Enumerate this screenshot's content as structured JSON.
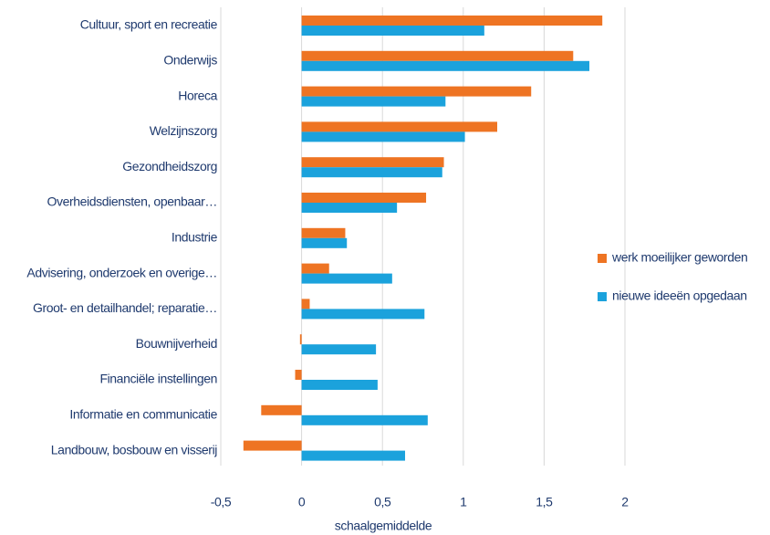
{
  "chart_data": {
    "type": "barh",
    "xlabel": "schaalgemiddelde",
    "categories": [
      "Cultuur, sport en recreatie",
      "Onderwijs",
      "Horeca",
      "Welzijnszorg",
      "Gezondheidszorg",
      "Overheidsdiensten, openbaar…",
      "Industrie",
      "Advisering, onderzoek en overige…",
      "Groot- en detailhandel; reparatie…",
      "Bouwnijverheid",
      "Financiële instellingen",
      "Informatie en communicatie",
      "Landbouw, bosbouw en visserij"
    ],
    "series": [
      {
        "name": "werk moeilijker geworden",
        "color": "#ee7423",
        "values": [
          1.86,
          1.68,
          1.42,
          1.21,
          0.88,
          0.77,
          0.27,
          0.17,
          0.05,
          -0.01,
          -0.04,
          -0.25,
          -0.36
        ]
      },
      {
        "name": "nieuwe ideeën opgedaan",
        "color": "#1ba2dc",
        "values": [
          1.13,
          1.78,
          0.89,
          1.01,
          0.87,
          0.59,
          0.28,
          0.56,
          0.76,
          0.46,
          0.47,
          0.78,
          0.64
        ]
      }
    ],
    "xlim": [
      -0.5,
      2
    ],
    "xticks": [
      {
        "value": -0.5,
        "label": "-0,5"
      },
      0,
      {
        "value": 0.5,
        "label": "0,5"
      },
      1,
      {
        "value": 1.5,
        "label": "1,5"
      },
      2
    ],
    "grid": true,
    "legend": "right"
  }
}
